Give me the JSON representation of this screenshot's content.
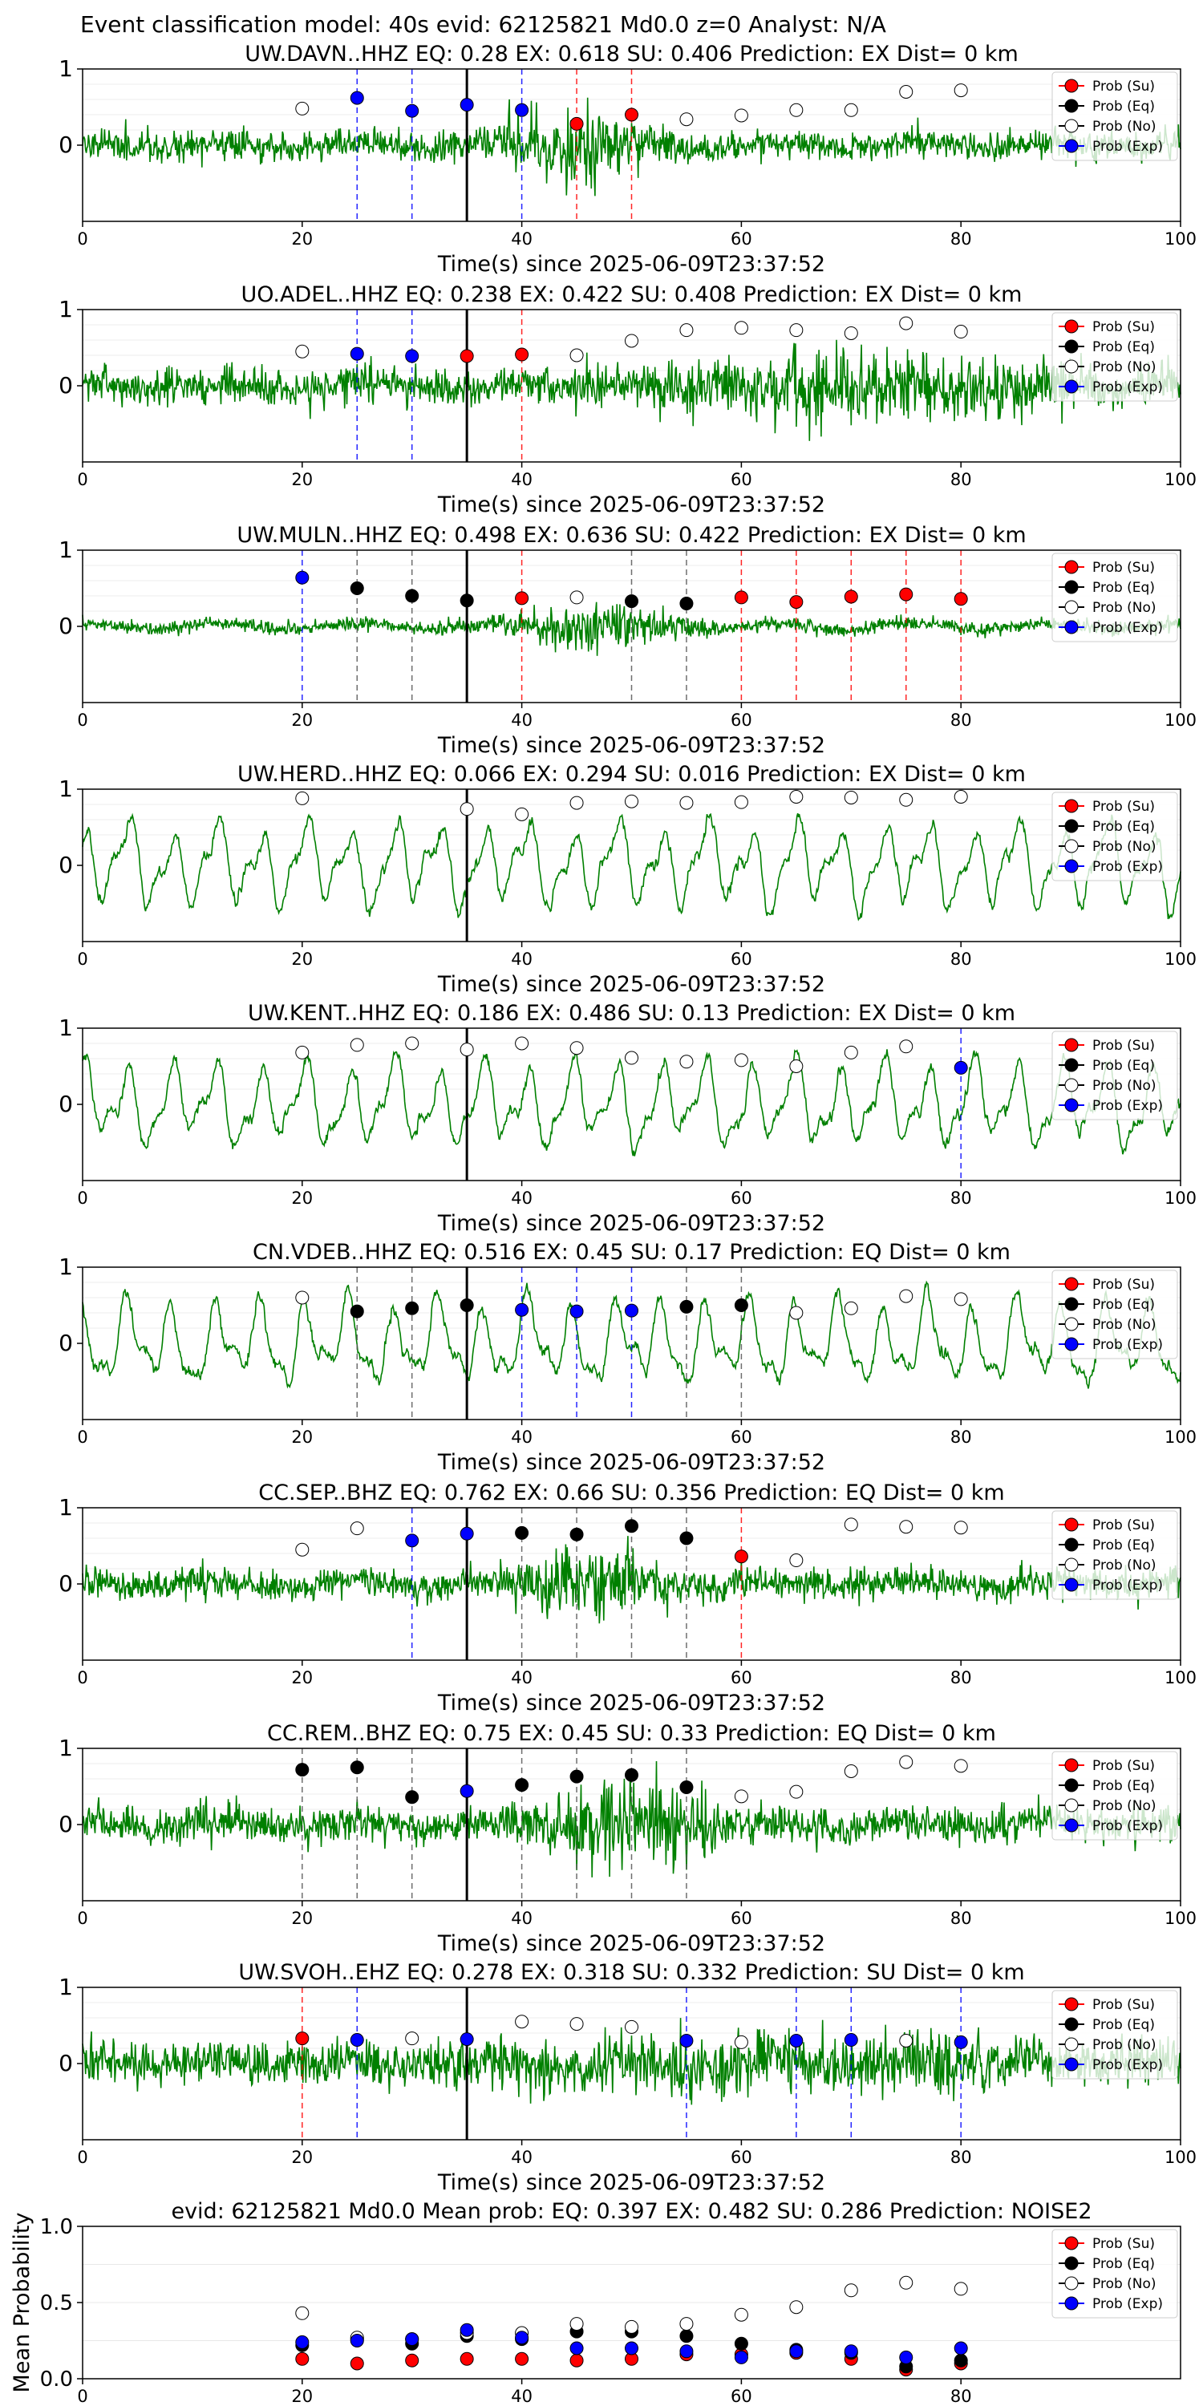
{
  "suptitle": "Event classification model: 40s evid: 62125821 Md0.0 z=0 Analyst: N/A",
  "colors": {
    "waveform": "#008000",
    "su": "#ff0000",
    "eq": "#000000",
    "no": "#ffffff",
    "exp": "#0000ff",
    "pick_line": "#000000"
  },
  "legend_labels": [
    "Prob (Su)",
    "Prob (Eq)",
    "Prob (No)",
    "Prob (Exp)"
  ],
  "chart_data": [
    {
      "type": "scatter",
      "title": "UW.DAVN..HHZ   EQ: 0.28  EX: 0.618  SU: 0.406   Prediction: EX    Dist= 0 km",
      "xlabel": "Time(s) since 2025-06-09T23:37:52",
      "xlim": [
        0,
        100
      ],
      "xticks": [
        "0",
        "20",
        "40",
        "60",
        "80",
        "100"
      ],
      "yticks": [
        "0",
        "1"
      ],
      "pick_time": 35,
      "waveform": {
        "amp": 0.22,
        "seed": 11,
        "style": "noise",
        "burst_center": 45,
        "burst_width": 6,
        "burst_gain": 2.5
      },
      "points": [
        {
          "x": 20,
          "p": 0.48,
          "c": "no"
        },
        {
          "x": 25,
          "p": 0.62,
          "c": "exp"
        },
        {
          "x": 30,
          "p": 0.45,
          "c": "exp"
        },
        {
          "x": 35,
          "p": 0.53,
          "c": "exp"
        },
        {
          "x": 40,
          "p": 0.46,
          "c": "exp"
        },
        {
          "x": 45,
          "p": 0.28,
          "c": "su"
        },
        {
          "x": 50,
          "p": 0.4,
          "c": "su"
        },
        {
          "x": 55,
          "p": 0.34,
          "c": "no"
        },
        {
          "x": 60,
          "p": 0.39,
          "c": "no"
        },
        {
          "x": 65,
          "p": 0.46,
          "c": "no"
        },
        {
          "x": 70,
          "p": 0.46,
          "c": "no"
        },
        {
          "x": 75,
          "p": 0.7,
          "c": "no"
        },
        {
          "x": 80,
          "p": 0.72,
          "c": "no"
        }
      ]
    },
    {
      "type": "scatter",
      "title": "UO.ADEL..HHZ   EQ: 0.238  EX: 0.422  SU: 0.408   Prediction: EX    Dist= 0 km",
      "xlabel": "Time(s) since 2025-06-09T23:37:52",
      "xlim": [
        0,
        100
      ],
      "xticks": [
        "0",
        "20",
        "40",
        "60",
        "80",
        "100"
      ],
      "yticks": [
        "0",
        "1"
      ],
      "pick_time": 35,
      "waveform": {
        "amp": 0.25,
        "seed": 23,
        "style": "noise",
        "burst_center": 70,
        "burst_width": 18,
        "burst_gain": 2.2
      },
      "points": [
        {
          "x": 20,
          "p": 0.45,
          "c": "no"
        },
        {
          "x": 25,
          "p": 0.42,
          "c": "exp"
        },
        {
          "x": 30,
          "p": 0.39,
          "c": "exp"
        },
        {
          "x": 35,
          "p": 0.39,
          "c": "su"
        },
        {
          "x": 40,
          "p": 0.41,
          "c": "su"
        },
        {
          "x": 45,
          "p": 0.4,
          "c": "no"
        },
        {
          "x": 50,
          "p": 0.59,
          "c": "no"
        },
        {
          "x": 55,
          "p": 0.73,
          "c": "no"
        },
        {
          "x": 60,
          "p": 0.76,
          "c": "no"
        },
        {
          "x": 65,
          "p": 0.73,
          "c": "no"
        },
        {
          "x": 70,
          "p": 0.69,
          "c": "no"
        },
        {
          "x": 75,
          "p": 0.82,
          "c": "no"
        },
        {
          "x": 80,
          "p": 0.71,
          "c": "no"
        }
      ]
    },
    {
      "type": "scatter",
      "title": "UW.MULN..HHZ   EQ: 0.498  EX: 0.636  SU: 0.422   Prediction: EX    Dist= 0 km",
      "xlabel": "Time(s) since 2025-06-09T23:37:52",
      "xlim": [
        0,
        100
      ],
      "xticks": [
        "0",
        "20",
        "40",
        "60",
        "80",
        "100"
      ],
      "yticks": [
        "0",
        "1"
      ],
      "pick_time": 35,
      "waveform": {
        "amp": 0.1,
        "seed": 37,
        "style": "noise",
        "burst_center": 47,
        "burst_width": 8,
        "burst_gain": 3.2
      },
      "points": [
        {
          "x": 20,
          "p": 0.64,
          "c": "exp"
        },
        {
          "x": 25,
          "p": 0.5,
          "c": "eq"
        },
        {
          "x": 30,
          "p": 0.4,
          "c": "eq"
        },
        {
          "x": 35,
          "p": 0.34,
          "c": "eq"
        },
        {
          "x": 40,
          "p": 0.37,
          "c": "su"
        },
        {
          "x": 45,
          "p": 0.38,
          "c": "no"
        },
        {
          "x": 50,
          "p": 0.33,
          "c": "eq"
        },
        {
          "x": 55,
          "p": 0.3,
          "c": "eq"
        },
        {
          "x": 60,
          "p": 0.38,
          "c": "su"
        },
        {
          "x": 65,
          "p": 0.32,
          "c": "su"
        },
        {
          "x": 70,
          "p": 0.39,
          "c": "su"
        },
        {
          "x": 75,
          "p": 0.42,
          "c": "su"
        },
        {
          "x": 80,
          "p": 0.36,
          "c": "su"
        }
      ]
    },
    {
      "type": "scatter",
      "title": "UW.HERD..HHZ   EQ: 0.066  EX: 0.294  SU: 0.016   Prediction: EX    Dist= 0 km",
      "xlabel": "Time(s) since 2025-06-09T23:37:52",
      "xlim": [
        0,
        100
      ],
      "xticks": [
        "0",
        "20",
        "40",
        "60",
        "80",
        "100"
      ],
      "yticks": [
        "0",
        "1"
      ],
      "pick_time": 35,
      "waveform": {
        "amp": 0.55,
        "seed": 41,
        "style": "wave",
        "burst_center": 50,
        "burst_width": 100,
        "burst_gain": 1.0
      },
      "points": [
        {
          "x": 20,
          "p": 0.88,
          "c": "no"
        },
        {
          "x": 35,
          "p": 0.74,
          "c": "no"
        },
        {
          "x": 40,
          "p": 0.67,
          "c": "no"
        },
        {
          "x": 45,
          "p": 0.82,
          "c": "no"
        },
        {
          "x": 50,
          "p": 0.84,
          "c": "no"
        },
        {
          "x": 55,
          "p": 0.82,
          "c": "no"
        },
        {
          "x": 60,
          "p": 0.83,
          "c": "no"
        },
        {
          "x": 65,
          "p": 0.9,
          "c": "no"
        },
        {
          "x": 70,
          "p": 0.89,
          "c": "no"
        },
        {
          "x": 75,
          "p": 0.86,
          "c": "no"
        },
        {
          "x": 80,
          "p": 0.9,
          "c": "no"
        }
      ]
    },
    {
      "type": "scatter",
      "title": "UW.KENT..HHZ   EQ: 0.186  EX: 0.486  SU: 0.13   Prediction: EX    Dist= 0 km",
      "xlabel": "Time(s) since 2025-06-09T23:37:52",
      "xlim": [
        0,
        100
      ],
      "xticks": [
        "0",
        "20",
        "40",
        "60",
        "80",
        "100"
      ],
      "yticks": [
        "0",
        "1"
      ],
      "pick_time": 35,
      "waveform": {
        "amp": 0.55,
        "seed": 53,
        "style": "wave",
        "burst_center": 50,
        "burst_width": 100,
        "burst_gain": 1.0
      },
      "points": [
        {
          "x": 20,
          "p": 0.68,
          "c": "no"
        },
        {
          "x": 25,
          "p": 0.78,
          "c": "no"
        },
        {
          "x": 30,
          "p": 0.8,
          "c": "no"
        },
        {
          "x": 35,
          "p": 0.72,
          "c": "no"
        },
        {
          "x": 40,
          "p": 0.8,
          "c": "no"
        },
        {
          "x": 45,
          "p": 0.74,
          "c": "no"
        },
        {
          "x": 50,
          "p": 0.61,
          "c": "no"
        },
        {
          "x": 55,
          "p": 0.56,
          "c": "no"
        },
        {
          "x": 60,
          "p": 0.58,
          "c": "no"
        },
        {
          "x": 65,
          "p": 0.5,
          "c": "no"
        },
        {
          "x": 70,
          "p": 0.68,
          "c": "no"
        },
        {
          "x": 75,
          "p": 0.76,
          "c": "no"
        },
        {
          "x": 80,
          "p": 0.48,
          "c": "exp"
        }
      ]
    },
    {
      "type": "scatter",
      "title": "CN.VDEB..HHZ   EQ: 0.516  EX: 0.45  SU: 0.17   Prediction: EQ    Dist= 0 km",
      "xlabel": "Time(s) since 2025-06-09T23:37:52",
      "xlim": [
        0,
        100
      ],
      "xticks": [
        "0",
        "20",
        "40",
        "60",
        "80",
        "100"
      ],
      "yticks": [
        "0",
        "1"
      ],
      "pick_time": 35,
      "waveform": {
        "amp": 0.55,
        "seed": 67,
        "style": "wave",
        "burst_center": 50,
        "burst_width": 100,
        "burst_gain": 1.0
      },
      "points": [
        {
          "x": 20,
          "p": 0.6,
          "c": "no"
        },
        {
          "x": 25,
          "p": 0.42,
          "c": "eq"
        },
        {
          "x": 30,
          "p": 0.46,
          "c": "eq"
        },
        {
          "x": 35,
          "p": 0.5,
          "c": "eq"
        },
        {
          "x": 40,
          "p": 0.44,
          "c": "exp"
        },
        {
          "x": 45,
          "p": 0.42,
          "c": "exp"
        },
        {
          "x": 50,
          "p": 0.43,
          "c": "exp"
        },
        {
          "x": 55,
          "p": 0.48,
          "c": "eq"
        },
        {
          "x": 60,
          "p": 0.5,
          "c": "eq"
        },
        {
          "x": 65,
          "p": 0.4,
          "c": "no"
        },
        {
          "x": 70,
          "p": 0.46,
          "c": "no"
        },
        {
          "x": 75,
          "p": 0.62,
          "c": "no"
        },
        {
          "x": 80,
          "p": 0.58,
          "c": "no"
        }
      ]
    },
    {
      "type": "scatter",
      "title": "CC.SEP..BHZ   EQ: 0.762  EX: 0.66  SU: 0.356   Prediction: EQ    Dist= 0 km",
      "xlabel": "Time(s) since 2025-06-09T23:37:52",
      "xlim": [
        0,
        100
      ],
      "xticks": [
        "0",
        "20",
        "40",
        "60",
        "80",
        "100"
      ],
      "yticks": [
        "0",
        "1"
      ],
      "pick_time": 35,
      "waveform": {
        "amp": 0.22,
        "seed": 79,
        "style": "noise",
        "burst_center": 47,
        "burst_width": 5,
        "burst_gain": 3.0
      },
      "points": [
        {
          "x": 20,
          "p": 0.45,
          "c": "no"
        },
        {
          "x": 25,
          "p": 0.73,
          "c": "no"
        },
        {
          "x": 30,
          "p": 0.57,
          "c": "exp"
        },
        {
          "x": 35,
          "p": 0.66,
          "c": "exp"
        },
        {
          "x": 40,
          "p": 0.67,
          "c": "eq"
        },
        {
          "x": 45,
          "p": 0.65,
          "c": "eq"
        },
        {
          "x": 50,
          "p": 0.76,
          "c": "eq"
        },
        {
          "x": 55,
          "p": 0.6,
          "c": "eq"
        },
        {
          "x": 60,
          "p": 0.36,
          "c": "su"
        },
        {
          "x": 65,
          "p": 0.31,
          "c": "no"
        },
        {
          "x": 70,
          "p": 0.78,
          "c": "no"
        },
        {
          "x": 75,
          "p": 0.75,
          "c": "no"
        },
        {
          "x": 80,
          "p": 0.74,
          "c": "no"
        }
      ]
    },
    {
      "type": "scatter",
      "title": "CC.REM..BHZ   EQ: 0.75  EX: 0.45  SU: 0.33   Prediction: EQ    Dist= 0 km",
      "xlabel": "Time(s) since 2025-06-09T23:37:52",
      "xlim": [
        0,
        100
      ],
      "xticks": [
        "0",
        "20",
        "40",
        "60",
        "80",
        "100"
      ],
      "yticks": [
        "0",
        "1"
      ],
      "pick_time": 35,
      "waveform": {
        "amp": 0.25,
        "seed": 83,
        "style": "noise",
        "burst_center": 50,
        "burst_width": 8,
        "burst_gain": 2.6
      },
      "points": [
        {
          "x": 20,
          "p": 0.72,
          "c": "eq"
        },
        {
          "x": 25,
          "p": 0.75,
          "c": "eq"
        },
        {
          "x": 30,
          "p": 0.36,
          "c": "eq"
        },
        {
          "x": 35,
          "p": 0.44,
          "c": "exp"
        },
        {
          "x": 40,
          "p": 0.52,
          "c": "eq"
        },
        {
          "x": 45,
          "p": 0.63,
          "c": "eq"
        },
        {
          "x": 50,
          "p": 0.65,
          "c": "eq"
        },
        {
          "x": 55,
          "p": 0.49,
          "c": "eq"
        },
        {
          "x": 60,
          "p": 0.37,
          "c": "no"
        },
        {
          "x": 65,
          "p": 0.43,
          "c": "no"
        },
        {
          "x": 70,
          "p": 0.7,
          "c": "no"
        },
        {
          "x": 75,
          "p": 0.82,
          "c": "no"
        },
        {
          "x": 80,
          "p": 0.77,
          "c": "no"
        }
      ]
    },
    {
      "type": "scatter",
      "title": "UW.SVOH..EHZ   EQ: 0.278  EX: 0.318  SU: 0.332   Prediction: SU    Dist= 0 km",
      "xlabel": "Time(s) since 2025-06-09T23:37:52",
      "xlim": [
        0,
        100
      ],
      "xticks": [
        "0",
        "20",
        "40",
        "60",
        "80",
        "100"
      ],
      "yticks": [
        "0",
        "1"
      ],
      "pick_time": 35,
      "waveform": {
        "amp": 0.3,
        "seed": 97,
        "style": "noise",
        "burst_center": 60,
        "burst_width": 30,
        "burst_gain": 1.5
      },
      "points": [
        {
          "x": 20,
          "p": 0.33,
          "c": "su"
        },
        {
          "x": 25,
          "p": 0.31,
          "c": "exp"
        },
        {
          "x": 30,
          "p": 0.33,
          "c": "no"
        },
        {
          "x": 35,
          "p": 0.32,
          "c": "exp"
        },
        {
          "x": 40,
          "p": 0.55,
          "c": "no"
        },
        {
          "x": 45,
          "p": 0.52,
          "c": "no"
        },
        {
          "x": 50,
          "p": 0.48,
          "c": "no"
        },
        {
          "x": 55,
          "p": 0.3,
          "c": "exp"
        },
        {
          "x": 60,
          "p": 0.28,
          "c": "no"
        },
        {
          "x": 65,
          "p": 0.3,
          "c": "exp"
        },
        {
          "x": 70,
          "p": 0.31,
          "c": "exp"
        },
        {
          "x": 75,
          "p": 0.3,
          "c": "no"
        },
        {
          "x": 80,
          "p": 0.28,
          "c": "exp"
        }
      ]
    },
    {
      "type": "scatter",
      "title": "evid: 62125821  Md0.0   Mean prob:    EQ: 0.397  EX: 0.482  SU: 0.286   Prediction: NOISE2",
      "ylabel": "Mean Probability",
      "xlim": [
        0,
        100
      ],
      "ylim": [
        0,
        1
      ],
      "xticks": [
        "0",
        "20",
        "40",
        "60",
        "80"
      ],
      "yticks": [
        "0.0",
        "0.5",
        "1.0"
      ],
      "x": [
        20,
        25,
        30,
        35,
        40,
        45,
        50,
        55,
        60,
        65,
        70,
        75,
        80
      ],
      "series": [
        {
          "name": "Prob (Su)",
          "c": "su",
          "values": [
            0.13,
            0.1,
            0.12,
            0.13,
            0.13,
            0.12,
            0.13,
            0.16,
            0.16,
            0.17,
            0.13,
            0.06,
            0.1
          ]
        },
        {
          "name": "Prob (Eq)",
          "c": "eq",
          "values": [
            0.22,
            0.26,
            0.23,
            0.28,
            0.26,
            0.31,
            0.31,
            0.28,
            0.23,
            0.19,
            0.17,
            0.08,
            0.12
          ]
        },
        {
          "name": "Prob (No)",
          "c": "no",
          "values": [
            0.43,
            0.27,
            0.26,
            0.3,
            0.3,
            0.36,
            0.34,
            0.36,
            0.42,
            0.47,
            0.58,
            0.63,
            0.59
          ]
        },
        {
          "name": "Prob (Exp)",
          "c": "exp",
          "values": [
            0.24,
            0.25,
            0.26,
            0.32,
            0.27,
            0.2,
            0.2,
            0.18,
            0.14,
            0.18,
            0.18,
            0.14,
            0.2
          ]
        }
      ]
    }
  ]
}
